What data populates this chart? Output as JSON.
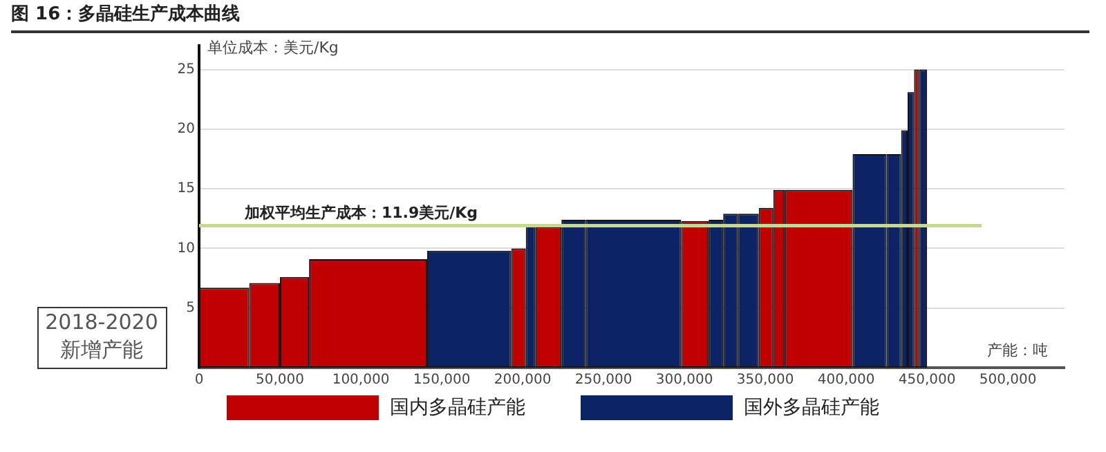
{
  "chart_data": {
    "type": "bar",
    "title": "图 16：多晶硅生产成本曲线",
    "ylabel": "单位成本：美元/Kg",
    "xlabel": "产能：吨",
    "annotations": [
      "2018-2020\n新增产能"
    ],
    "series": [
      {
        "name": "国内多晶硅产能",
        "color": "#c00000",
        "x": [
          15500,
          40500,
          59000,
          104500,
          197500,
          216000,
          306500,
          350500,
          358500,
          383000,
          443500
        ],
        "values": [
          6.7,
          7.1,
          7.6,
          9.1,
          10.0,
          11.8,
          12.3,
          13.4,
          14.9,
          14.9,
          25
        ]
      },
      {
        "name": "国外多晶硅产能",
        "color": "#0c2466",
        "x": [
          167000,
          205000,
          231500,
          268500,
          319500,
          328500,
          339500,
          414500,
          429500,
          436000,
          440000,
          447500
        ],
        "values": [
          9.8,
          12.0,
          12.4,
          12.4,
          12.4,
          12.9,
          12.9,
          17.9,
          17.9,
          19.9,
          23.1,
          25
        ]
      }
    ],
    "xlim": [
      0,
      535000
    ],
    "xticks": [
      {
        "value": 0,
        "label": "0"
      },
      {
        "value": 50000,
        "label": "50,000"
      },
      {
        "value": 100000,
        "label": "100,000"
      },
      {
        "value": 150000,
        "label": "150,000"
      },
      {
        "value": 200000,
        "label": "200,000"
      },
      {
        "value": 250000,
        "label": "250,000"
      },
      {
        "value": 300000,
        "label": "300,000"
      },
      {
        "value": 350000,
        "label": "350,000"
      },
      {
        "value": 400000,
        "label": "400,000"
      },
      {
        "value": 450000,
        "label": "450,000"
      },
      {
        "value": 500000,
        "label": "500,000"
      }
    ],
    "ylim": [
      0,
      27
    ],
    "yticks": [
      5,
      10,
      15,
      20,
      25
    ],
    "ref_lines": [
      {
        "axis": "y",
        "value": 11.9,
        "label": "加权平均生产成本：11.9美元/Kg",
        "color": "#c5d79a"
      }
    ],
    "grid": "y",
    "legend": "bottom"
  }
}
